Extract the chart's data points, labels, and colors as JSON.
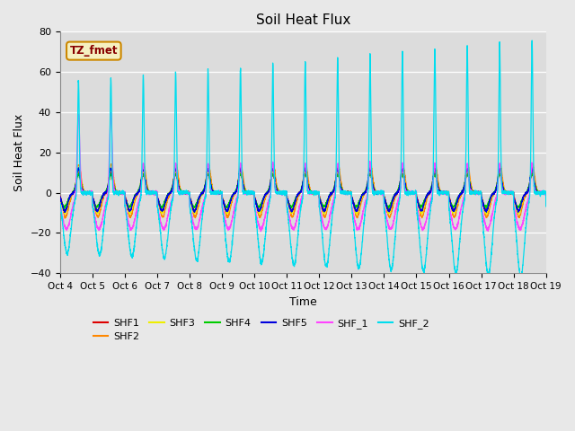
{
  "title": "Soil Heat Flux",
  "xlabel": "Time",
  "ylabel": "Soil Heat Flux",
  "ylim": [
    -40,
    80
  ],
  "yticks": [
    -40,
    -20,
    0,
    20,
    40,
    60,
    80
  ],
  "background_color": "#e8e8e8",
  "plot_bg_color": "#dcdcdc",
  "series_colors": {
    "SHF1": "#dd0000",
    "SHF2": "#ff8800",
    "SHF3": "#eeee00",
    "SHF4": "#00cc00",
    "SHF5": "#0000dd",
    "SHF_1": "#ff44ff",
    "SHF_2": "#00ddee"
  },
  "annotation_text": "TZ_fmet",
  "num_days": 15
}
